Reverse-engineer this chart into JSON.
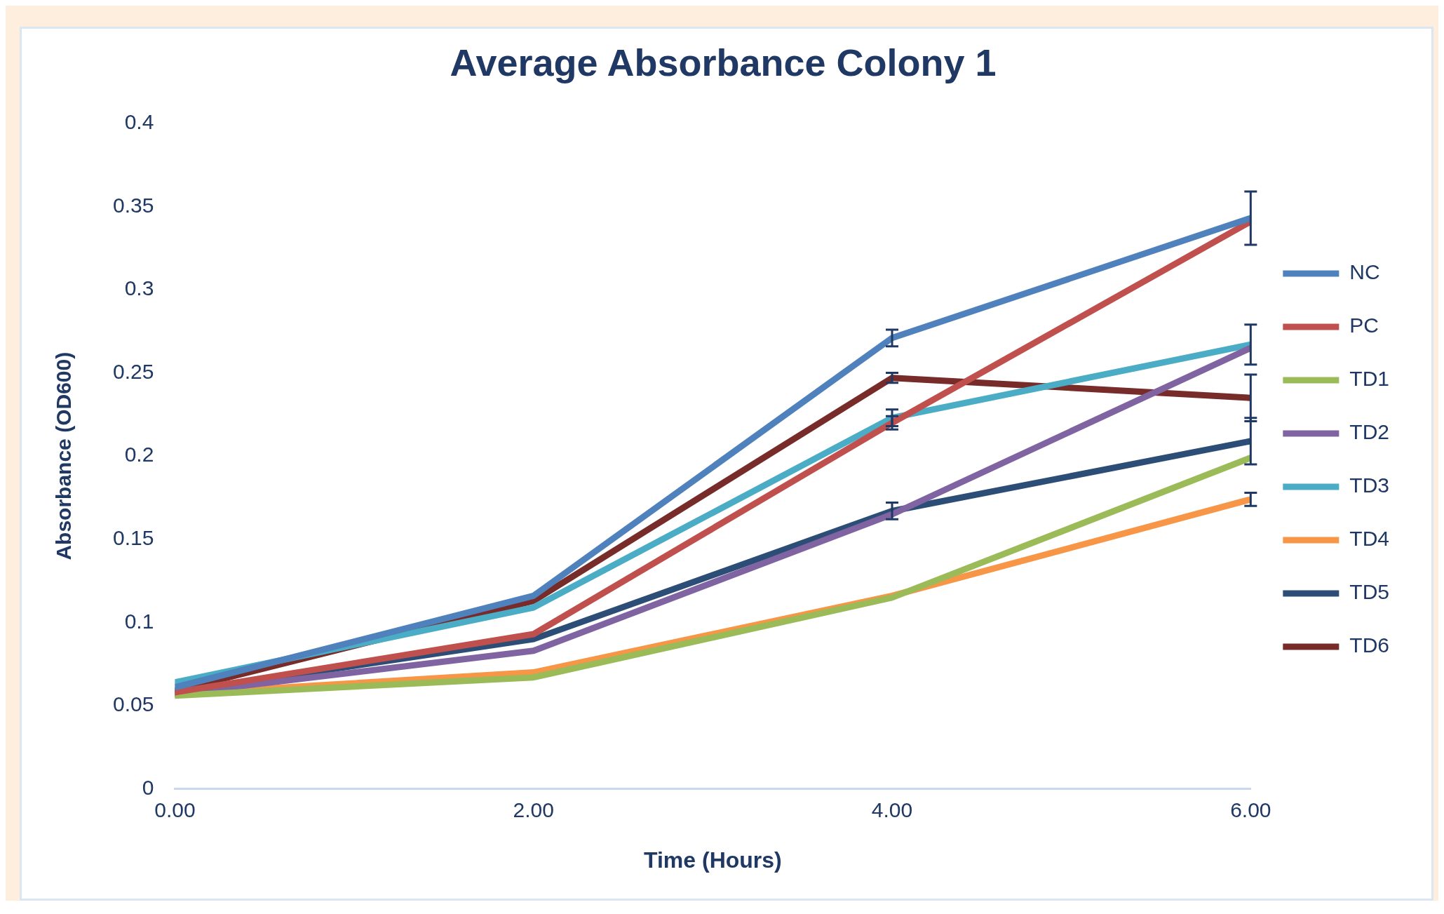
{
  "chart_data": {
    "type": "line",
    "title": "Average Absorbance Colony 1",
    "xlabel": "Time (Hours)",
    "ylabel": "Absorbance (OD600)",
    "x": [
      0,
      2,
      4,
      6
    ],
    "xlim": [
      0,
      6
    ],
    "xticks": [
      {
        "value": 0,
        "label": "0.00"
      },
      {
        "value": 2,
        "label": "2.00"
      },
      {
        "value": 4,
        "label": "4.00"
      },
      {
        "value": 6,
        "label": "6.00"
      }
    ],
    "ylim": [
      0,
      0.4
    ],
    "yticks": [
      0,
      0.05,
      0.1,
      0.15,
      0.2,
      0.25,
      0.3,
      0.35,
      0.4
    ],
    "grid": false,
    "legend": "right",
    "marker": "none",
    "line_style": "solid",
    "series": [
      {
        "name": "NC",
        "color": "#4f81bd",
        "values": [
          0.061,
          0.116,
          0.271,
          0.343
        ],
        "errors": [
          null,
          null,
          0.005,
          0.016
        ]
      },
      {
        "name": "PC",
        "color": "#c0504d",
        "values": [
          0.058,
          0.093,
          0.22,
          0.341
        ],
        "errors": [
          null,
          null,
          0.004,
          null
        ]
      },
      {
        "name": "TD1",
        "color": "#9bbb59",
        "values": [
          0.056,
          0.067,
          0.115,
          0.199
        ]
      },
      {
        "name": "TD2",
        "color": "#8064a2",
        "values": [
          0.057,
          0.083,
          0.165,
          0.265
        ]
      },
      {
        "name": "TD3",
        "color": "#4bacc6",
        "values": [
          0.064,
          0.109,
          0.223,
          0.267
        ],
        "errors": [
          null,
          null,
          0.005,
          0.012
        ]
      },
      {
        "name": "TD4",
        "color": "#f79646",
        "values": [
          0.057,
          0.07,
          0.116,
          0.174
        ],
        "errors": [
          null,
          null,
          null,
          0.004
        ]
      },
      {
        "name": "TD5",
        "color": "#2c4d75",
        "values": [
          0.058,
          0.09,
          0.167,
          0.209
        ],
        "errors": [
          null,
          null,
          0.005,
          0.014
        ]
      },
      {
        "name": "TD6",
        "color": "#772c2a",
        "values": [
          0.059,
          0.113,
          0.247,
          0.235
        ],
        "errors": [
          null,
          null,
          0.003,
          0.014
        ]
      }
    ]
  }
}
